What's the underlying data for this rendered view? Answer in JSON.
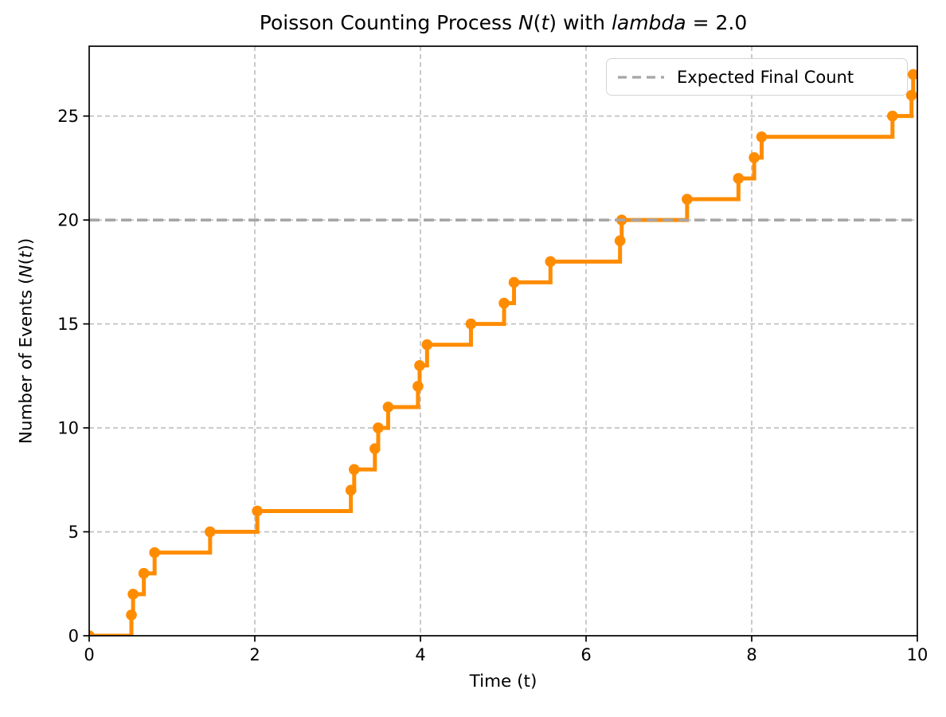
{
  "chart_data": {
    "type": "step",
    "title": "Poisson Counting Process N(t) with lambda = 2.0",
    "title_parts": [
      {
        "text": "Poisson Counting Process ",
        "italic": false
      },
      {
        "text": "N",
        "italic": true
      },
      {
        "text": "(",
        "italic": false
      },
      {
        "text": "t",
        "italic": true
      },
      {
        "text": ") with ",
        "italic": false
      },
      {
        "text": "lambda",
        "italic": true
      },
      {
        "text": " = 2.0",
        "italic": false
      }
    ],
    "xlabel": "Time (t)",
    "ylabel": "Number of Events (N(t))",
    "ylabel_parts": [
      {
        "text": "Number of Events (",
        "italic": false
      },
      {
        "text": "N",
        "italic": true
      },
      {
        "text": "(",
        "italic": false
      },
      {
        "text": "t",
        "italic": true
      },
      {
        "text": "))",
        "italic": false
      }
    ],
    "lambda": 2.0,
    "expected_final_count": 20,
    "final_count": 27,
    "xlim": [
      0,
      10
    ],
    "ylim": [
      0,
      28.36
    ],
    "xticks": [
      0,
      2,
      4,
      6,
      8,
      10
    ],
    "yticks": [
      0,
      5,
      10,
      15,
      20,
      25
    ],
    "grid": true,
    "start_point": {
      "t": 0,
      "n": 0
    },
    "event_times": [
      0.51,
      0.53,
      0.66,
      0.79,
      1.46,
      2.03,
      3.16,
      3.2,
      3.45,
      3.49,
      3.61,
      3.97,
      3.99,
      4.08,
      4.61,
      5.01,
      5.13,
      5.57,
      6.41,
      6.43,
      7.22,
      7.84,
      8.03,
      8.12,
      9.7,
      9.93,
      9.95
    ],
    "legend": {
      "position": "upper right",
      "entries": [
        {
          "label": "Expected Final Count",
          "line_style": "dashed",
          "color": "#a6a6a6"
        }
      ]
    },
    "colors": {
      "step_line": "#ff8c00",
      "expected_line": "#a6a6a6",
      "grid": "#b3b3b3",
      "text": "#000000",
      "background": "#ffffff"
    }
  }
}
